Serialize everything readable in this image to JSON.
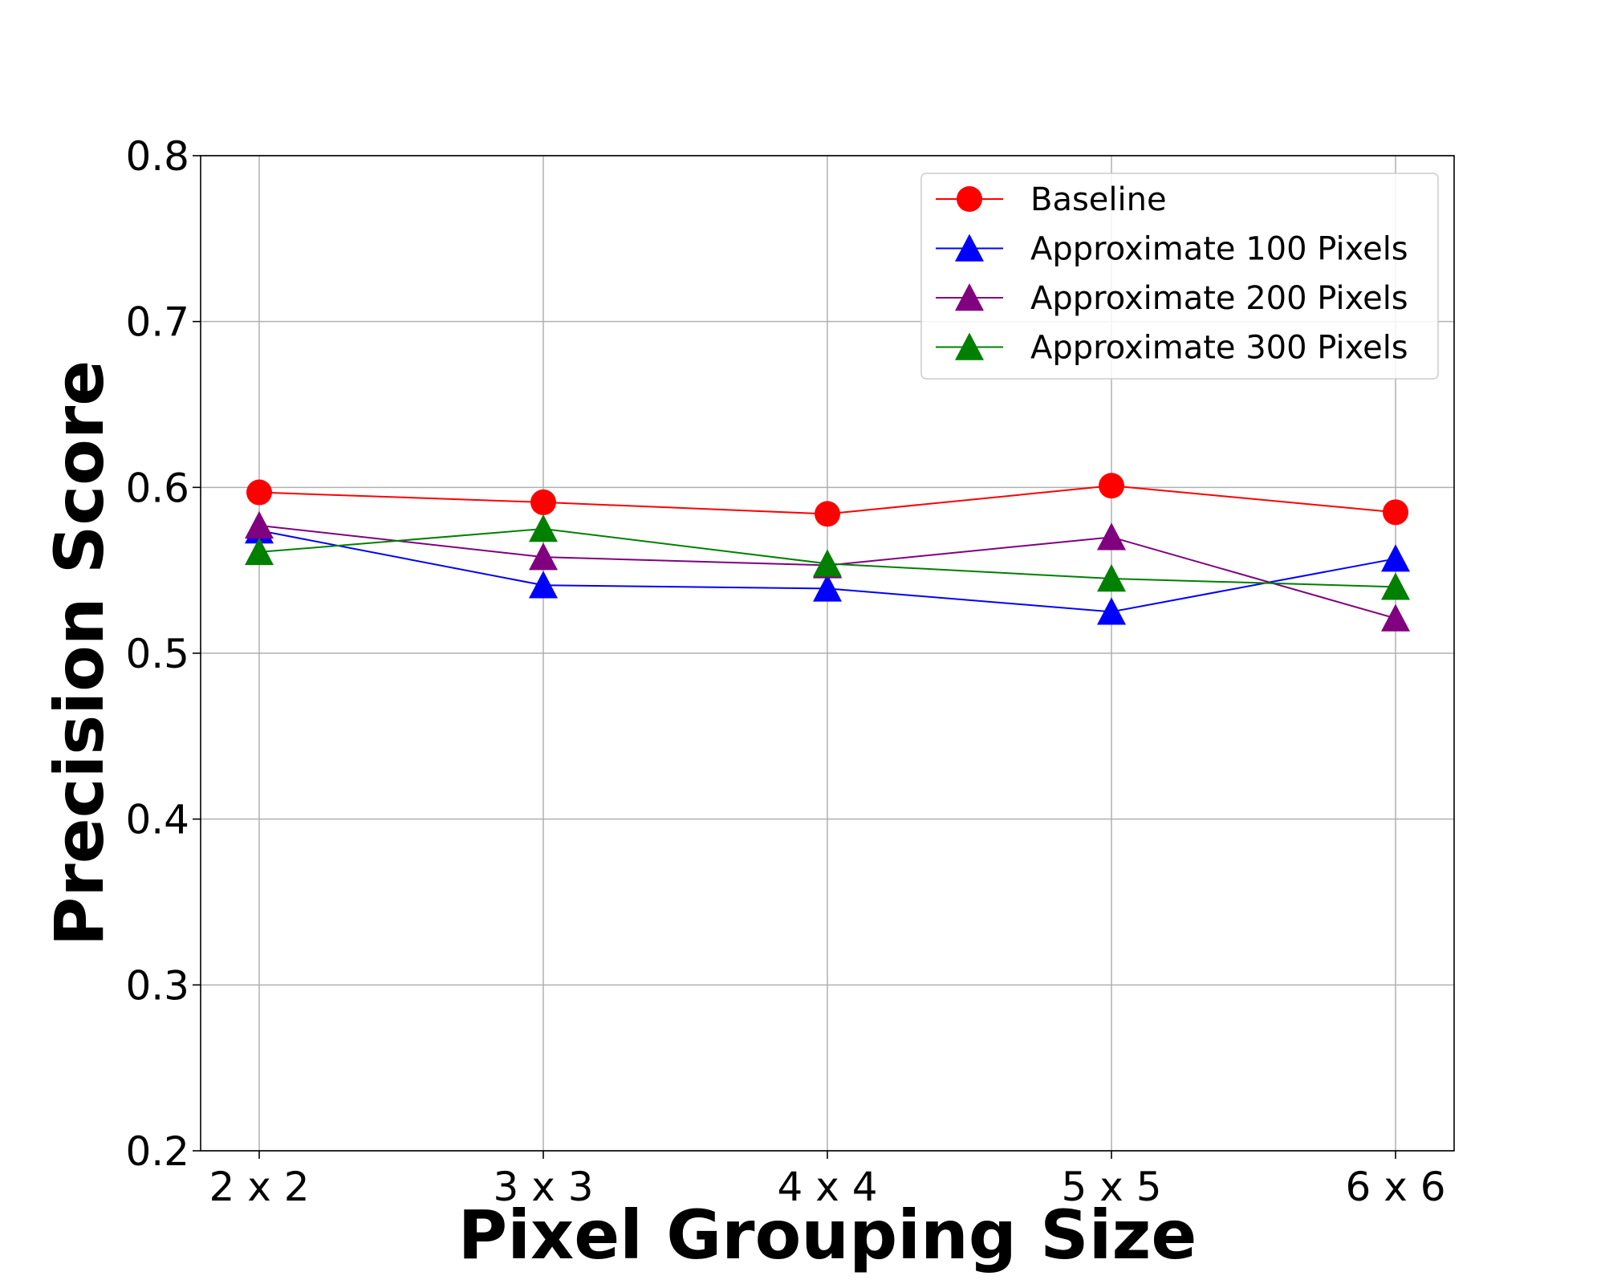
{
  "chart_data": {
    "type": "line",
    "xlabel": "Pixel Grouping Size",
    "ylabel": "Precision Score",
    "categories": [
      "2 x 2",
      "3 x 3",
      "4 x 4",
      "5 x 5",
      "6 x 6"
    ],
    "ylim": [
      0.2,
      0.8
    ],
    "yticks": [
      "0.2",
      "0.3",
      "0.4",
      "0.5",
      "0.6",
      "0.7",
      "0.8"
    ],
    "grid": true,
    "legend_position": "top-right",
    "series": [
      {
        "name": "Baseline",
        "color": "#ff0000",
        "marker": "circle",
        "values": [
          0.597,
          0.591,
          0.584,
          0.601,
          0.585
        ]
      },
      {
        "name": "Approximate 100 Pixels",
        "color": "#0000ff",
        "marker": "triangle",
        "values": [
          0.574,
          0.541,
          0.539,
          0.525,
          0.557
        ]
      },
      {
        "name": "Approximate 200 Pixels",
        "color": "#800080",
        "marker": "triangle",
        "values": [
          0.577,
          0.558,
          0.553,
          0.57,
          0.521
        ]
      },
      {
        "name": "Approximate 300 Pixels",
        "color": "#008000",
        "marker": "triangle",
        "values": [
          0.561,
          0.575,
          0.554,
          0.545,
          0.54
        ]
      }
    ]
  }
}
